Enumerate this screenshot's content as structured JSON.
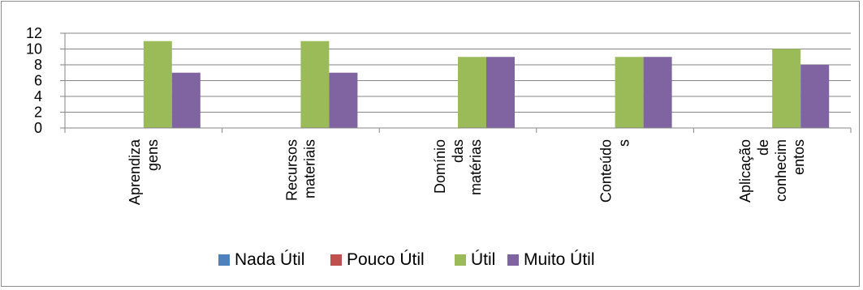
{
  "chart_data": {
    "type": "bar",
    "categories": [
      [
        "Aprendiza",
        "gens"
      ],
      [
        "Recursos",
        "materiais"
      ],
      [
        "Domínio",
        "das",
        "matérias"
      ],
      [
        "Conteúdo",
        "s"
      ],
      [
        "Aplicação",
        "de",
        "conhecim",
        "entos"
      ]
    ],
    "series": [
      {
        "name": "Nada Útil",
        "color": "#4f81bd",
        "values": [
          0,
          0,
          0,
          0,
          0
        ]
      },
      {
        "name": "Pouco Útil",
        "color": "#c0504d",
        "values": [
          0,
          0,
          0,
          0,
          0
        ]
      },
      {
        "name": "Útil",
        "color": "#9bbb59",
        "values": [
          11,
          11,
          9,
          9,
          10
        ]
      },
      {
        "name": "Muito Útil",
        "color": "#8064a2",
        "values": [
          7,
          7,
          9,
          9,
          8
        ]
      }
    ],
    "yticks": [
      0,
      2,
      4,
      6,
      8,
      10,
      12
    ],
    "ylim": [
      0,
      12
    ],
    "grid": true,
    "legend_position": "bottom",
    "title": "",
    "xlabel": "",
    "ylabel": ""
  }
}
